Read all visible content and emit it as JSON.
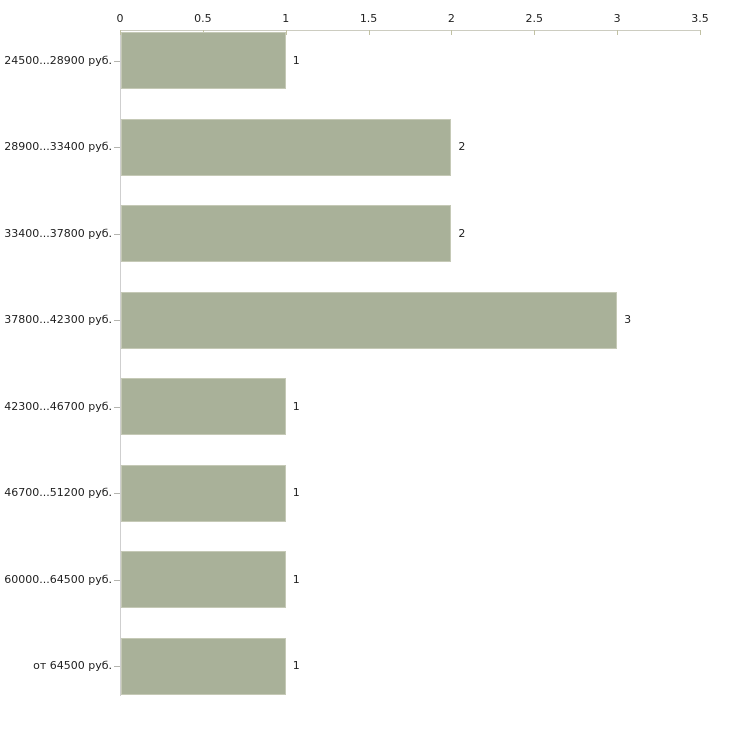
{
  "chart_data": {
    "type": "bar",
    "orientation": "horizontal",
    "title": "",
    "xlabel": "",
    "ylabel": "",
    "categories": [
      "24500...28900 руб.",
      "28900...33400 руб.",
      "33400...37800 руб.",
      "37800...42300 руб.",
      "42300...46700 руб.",
      "46700...51200 руб.",
      "60000...64500 руб.",
      "от 64500 руб."
    ],
    "values": [
      1,
      2,
      2,
      3,
      1,
      1,
      1,
      1
    ],
    "value_labels": [
      "1",
      "2",
      "2",
      "3",
      "1",
      "1",
      "1",
      "1"
    ],
    "x_tick_values": [
      0,
      0.5,
      1,
      1.5,
      2,
      2.5,
      3,
      3.5
    ],
    "x_tick_labels": [
      "0",
      "0.5",
      "1",
      "1.5",
      "2",
      "2.5",
      "3",
      "3.5"
    ],
    "xlim": [
      0,
      3.5
    ],
    "axis_position": "top",
    "grid": false,
    "legend_position": "none",
    "colors": {
      "background": "#ffffff",
      "bar_fill": "#a9b199",
      "bar_border": "#c5c9b6",
      "axis_line": "#ccccc0",
      "axis_line_vertical": "#cfcfcf",
      "tick_mark": "#c1c1a3",
      "category_tick": "#b5b5b0",
      "text": "#1f1f1f"
    }
  }
}
